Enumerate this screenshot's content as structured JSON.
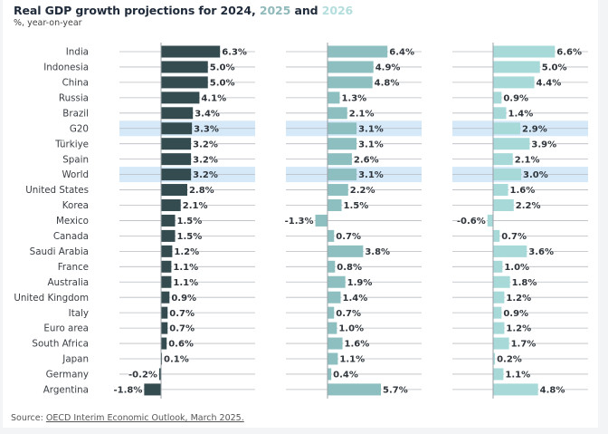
{
  "header": {
    "title_prefix": "Real GDP growth projections for 2024,",
    "title_y2025": "2025",
    "title_and": "and",
    "title_y2026": "2026",
    "subtitle": "%, year-on-year"
  },
  "footer": {
    "source_label": "Source:",
    "source_link": "OECD Interim Economic Outlook, March 2025."
  },
  "colors": {
    "y2024": "#344b4f",
    "y2025": "#8dbfc0",
    "y2026": "#a7d9d9",
    "highlight": "#d6e9f9",
    "gridline": "#b8bcc2",
    "title_2025": "#8fb9ba",
    "title_2026": "#b4dedd"
  },
  "chart_data": {
    "type": "bar",
    "orientation": "horizontal",
    "title": "Real GDP growth projections for 2024, 2025 and 2026",
    "subtitle": "%, year-on-year",
    "unit": "%",
    "highlighted_categories": [
      "G20",
      "World"
    ],
    "categories": [
      "India",
      "Indonesia",
      "China",
      "Russia",
      "Brazil",
      "G20",
      "Türkiye",
      "Spain",
      "World",
      "United States",
      "Korea",
      "Mexico",
      "Canada",
      "Saudi Arabia",
      "France",
      "Australia",
      "United Kingdom",
      "Italy",
      "Euro area",
      "South Africa",
      "Japan",
      "Germany",
      "Argentina"
    ],
    "series": [
      {
        "name": "2024",
        "values": [
          6.3,
          5.0,
          5.0,
          4.1,
          3.4,
          3.3,
          3.2,
          3.2,
          3.2,
          2.8,
          2.1,
          1.5,
          1.5,
          1.2,
          1.1,
          1.1,
          0.9,
          0.7,
          0.7,
          0.6,
          0.1,
          -0.2,
          -1.8
        ]
      },
      {
        "name": "2025",
        "values": [
          6.4,
          4.9,
          4.8,
          1.3,
          2.1,
          3.1,
          3.1,
          2.6,
          3.1,
          2.2,
          1.5,
          -1.3,
          0.7,
          3.8,
          0.8,
          1.9,
          1.4,
          0.7,
          1.0,
          1.6,
          1.1,
          0.4,
          5.7
        ]
      },
      {
        "name": "2026",
        "values": [
          6.6,
          5.0,
          4.4,
          0.9,
          1.4,
          2.9,
          3.9,
          2.1,
          3.0,
          1.6,
          2.2,
          -0.6,
          0.7,
          3.6,
          1.0,
          1.8,
          1.2,
          0.9,
          1.2,
          1.7,
          0.2,
          1.1,
          4.8
        ]
      }
    ],
    "xlabel": "",
    "ylabel": "",
    "grid": true,
    "legend": "none (years indicated by title colors)"
  }
}
